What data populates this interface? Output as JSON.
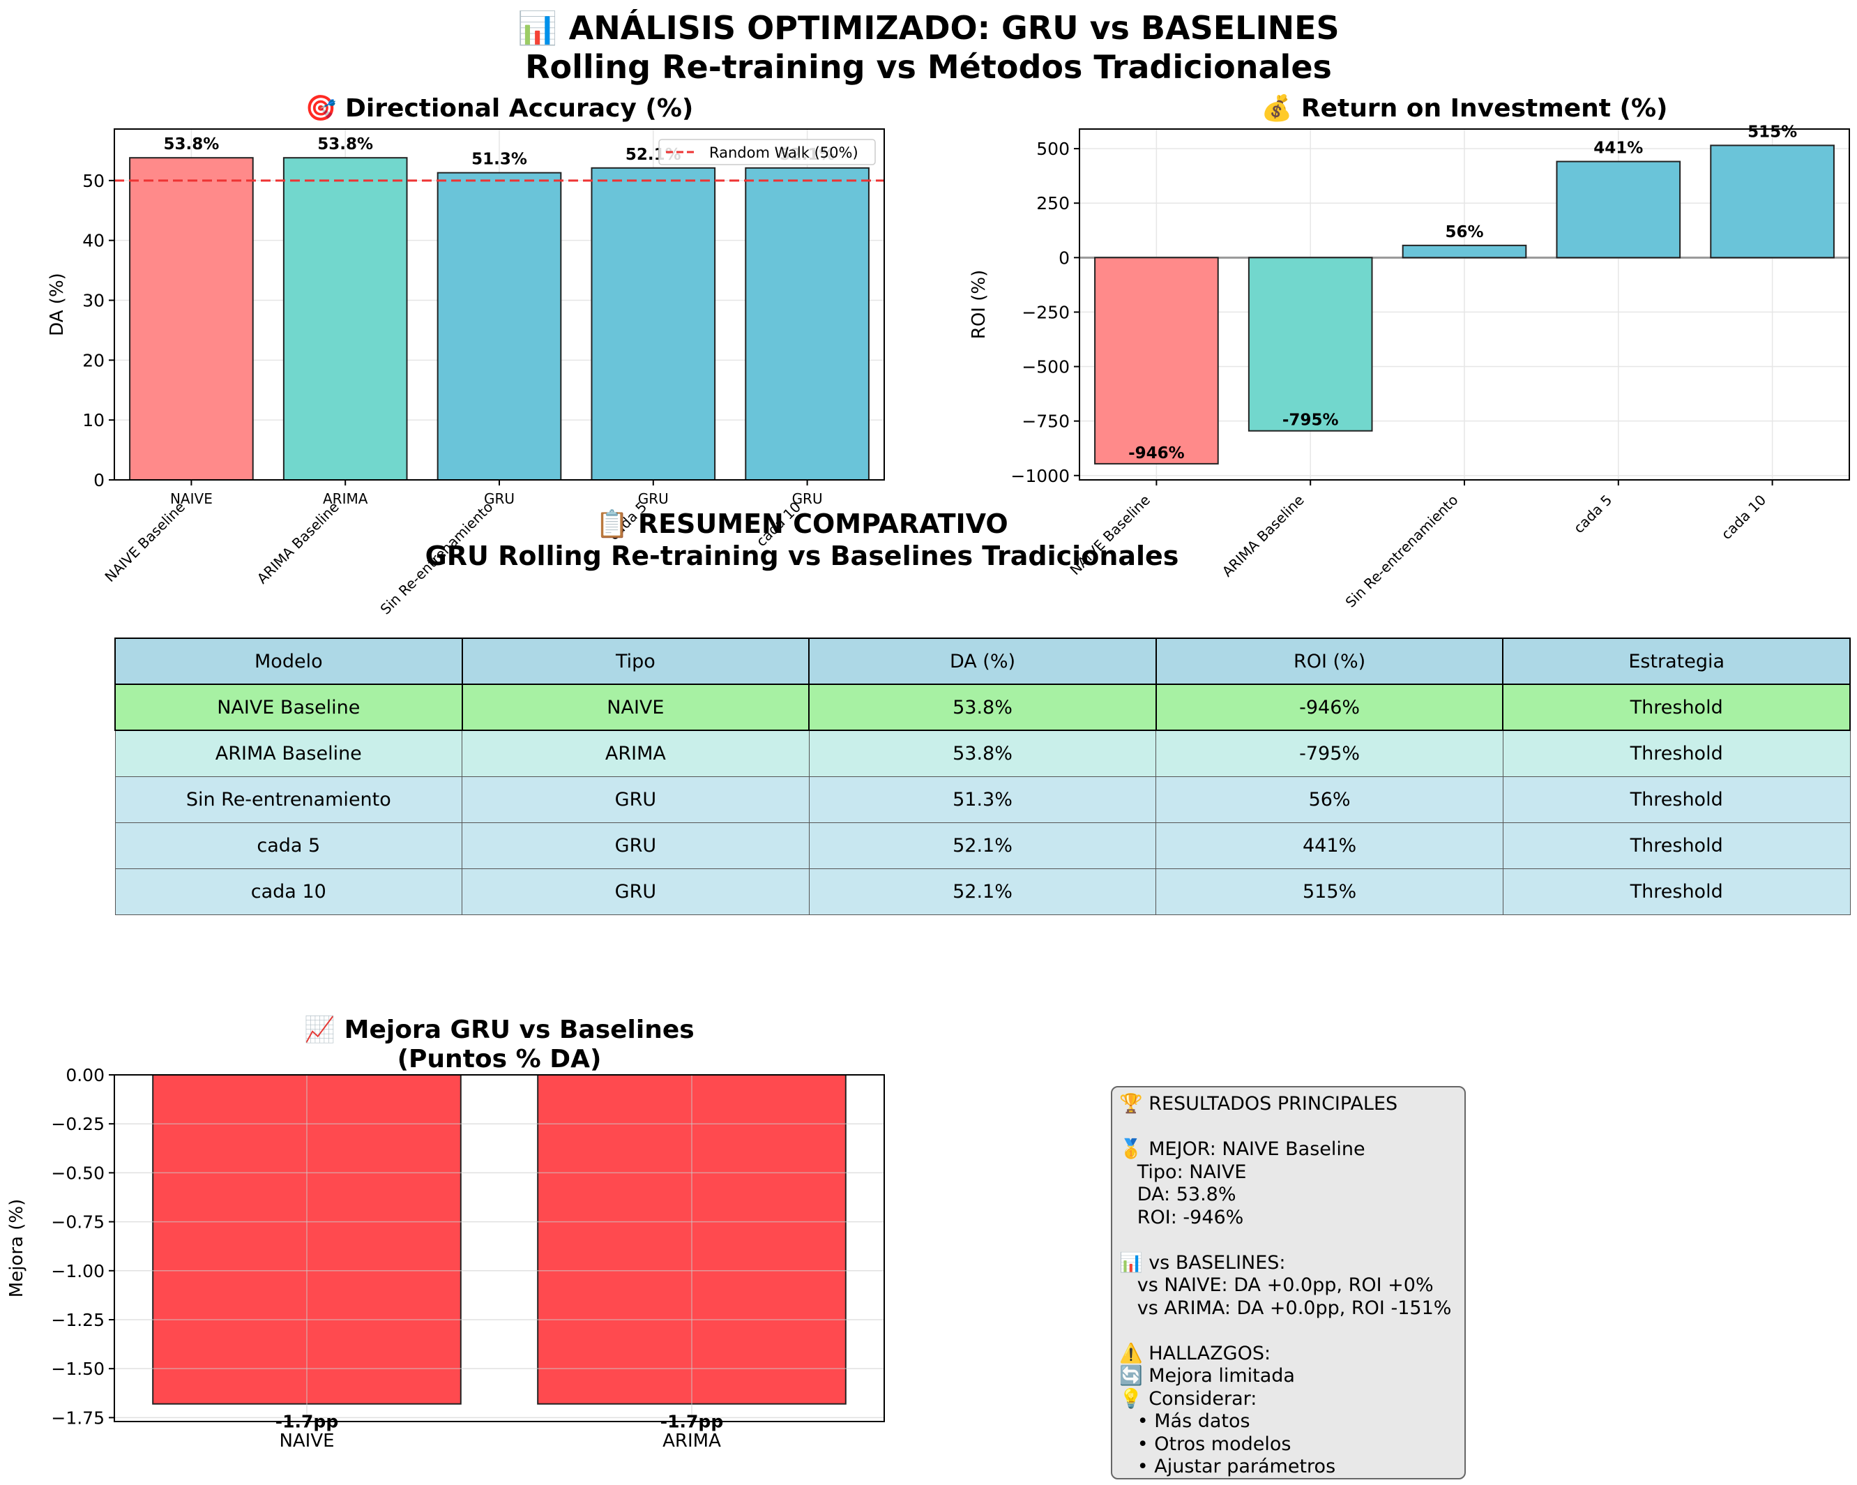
{
  "main_title": "📊 ANÁLISIS OPTIMIZADO: GRU vs BASELINES\nRolling Re-training vs Métodos Tradicionales",
  "colors": {
    "naive": "#ff8a8a",
    "arima": "#72d7cd",
    "gru": "#6ac4d9",
    "negative": "#ff4a4f",
    "random_walk": "#ee3333"
  },
  "chart_data": [
    {
      "type": "bar",
      "title": "🎯 Directional Accuracy (%)",
      "ylabel": "DA (%)",
      "ylim": [
        0,
        58.6
      ],
      "yticks": [
        0,
        10,
        20,
        30,
        40,
        50
      ],
      "categories_top": [
        "NAIVE",
        "ARIMA",
        "GRU",
        "GRU",
        "GRU"
      ],
      "categories": [
        "NAIVE Baseline",
        "ARIMA Baseline",
        "Sin Re-entrenamiento",
        "cada 5",
        "cada 10"
      ],
      "values": [
        53.8,
        53.8,
        51.3,
        52.1,
        52.1
      ],
      "data_labels": [
        "53.8%",
        "53.8%",
        "51.3%",
        "52.1%",
        "52.1%"
      ],
      "reference_line": {
        "value": 50,
        "label": "Random Walk (50%)"
      },
      "legend": "top-right",
      "grid": true
    },
    {
      "type": "bar",
      "title": "💰 Return on Investment (%)",
      "ylabel": "ROI (%)",
      "ylim": [
        -1020,
        590
      ],
      "yticks": [
        -1000,
        -750,
        -500,
        -250,
        0,
        250,
        500
      ],
      "ytick_labels": [
        "−1000",
        "−750",
        "−500",
        "−250",
        "0",
        "250",
        "500"
      ],
      "categories": [
        "NAIVE Baseline",
        "ARIMA Baseline",
        "Sin Re-entrenamiento",
        "cada 5",
        "cada 10"
      ],
      "values": [
        -946,
        -795,
        56,
        441,
        515
      ],
      "data_labels": [
        "-946%",
        "-795%",
        "56%",
        "441%",
        "515%"
      ],
      "grid": true
    },
    {
      "type": "bar",
      "title": "📈 Mejora GRU vs Baselines\n(Puntos % DA)",
      "ylabel": "Mejora (%)",
      "ylim": [
        -1.77,
        0
      ],
      "yticks": [
        0,
        -0.25,
        -0.5,
        -0.75,
        -1.0,
        -1.25,
        -1.5,
        -1.75
      ],
      "ytick_labels": [
        "0.00",
        "−0.25",
        "−0.50",
        "−0.75",
        "−1.00",
        "−1.25",
        "−1.50",
        "−1.75"
      ],
      "categories": [
        "NAIVE",
        "ARIMA"
      ],
      "values": [
        -1.68,
        -1.68
      ],
      "data_labels": [
        "-1.7pp",
        "-1.7pp"
      ],
      "grid": true
    },
    {
      "type": "table",
      "title": "📋 RESUMEN COMPARATIVO\nGRU Rolling Re-training vs Baselines Tradicionales",
      "columns": [
        "Modelo",
        "Tipo",
        "DA (%)",
        "ROI (%)",
        "Estrategia"
      ],
      "rows": [
        [
          "NAIVE Baseline",
          "NAIVE",
          "53.8%",
          "-946%",
          "Threshold"
        ],
        [
          "ARIMA Baseline",
          "ARIMA",
          "53.8%",
          "-795%",
          "Threshold"
        ],
        [
          "Sin Re-entrenamiento",
          "GRU",
          "51.3%",
          "56%",
          "Threshold"
        ],
        [
          "cada 5",
          "GRU",
          "52.1%",
          "441%",
          "Threshold"
        ],
        [
          "cada 10",
          "GRU",
          "52.1%",
          "515%",
          "Threshold"
        ]
      ]
    }
  ],
  "results_box": "🏆 RESULTADOS PRINCIPALES\n\n🥇 MEJOR: NAIVE Baseline\n   Tipo: NAIVE\n   DA: 53.8%\n   ROI: -946%\n\n📊 vs BASELINES:\n   vs NAIVE: DA +0.0pp, ROI +0%\n   vs ARIMA: DA +0.0pp, ROI -151%\n\n⚠️ HALLAZGOS:\n🔄 Mejora limitada\n💡 Considerar:\n   • Más datos\n   • Otros modelos\n   • Ajustar parámetros"
}
